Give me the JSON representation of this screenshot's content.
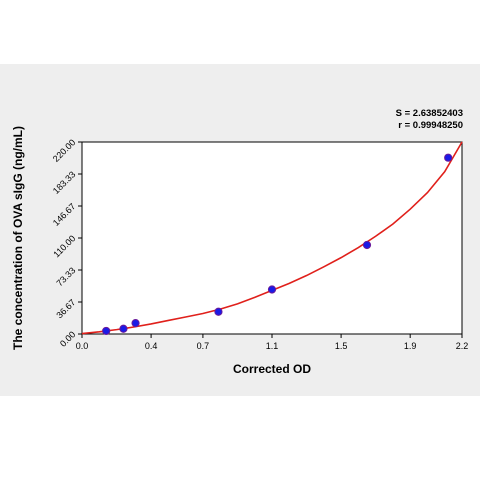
{
  "chart_data": {
    "type": "scatter",
    "xlabel": "Corrected OD",
    "ylabel": "The concentration of OVA sIgG (ng/mL)",
    "xlim": [
      0.0,
      2.2
    ],
    "ylim": [
      0.0,
      220.0
    ],
    "x_ticks": [
      "0.0",
      "0.4",
      "0.7",
      "1.1",
      "1.5",
      "1.9",
      "2.2"
    ],
    "y_ticks": [
      "0.00",
      "36.67",
      "73.33",
      "110.00",
      "146.67",
      "183.33",
      "220.00"
    ],
    "grid": false,
    "stats": {
      "s_label": "S = 2.63852403",
      "r_label": "r = 0.99948250"
    },
    "points": [
      {
        "x": 0.14,
        "y": 3.5
      },
      {
        "x": 0.24,
        "y": 6.0
      },
      {
        "x": 0.31,
        "y": 12.5
      },
      {
        "x": 0.79,
        "y": 25.5
      },
      {
        "x": 1.1,
        "y": 51.0
      },
      {
        "x": 1.65,
        "y": 102.0
      },
      {
        "x": 2.12,
        "y": 202.0
      }
    ],
    "fit_curve": [
      {
        "x": 0.0,
        "y": 0.5
      },
      {
        "x": 0.1,
        "y": 2.5
      },
      {
        "x": 0.2,
        "y": 5.0
      },
      {
        "x": 0.3,
        "y": 8.0
      },
      {
        "x": 0.4,
        "y": 11.5
      },
      {
        "x": 0.5,
        "y": 15.5
      },
      {
        "x": 0.6,
        "y": 19.5
      },
      {
        "x": 0.7,
        "y": 23.5
      },
      {
        "x": 0.8,
        "y": 28.5
      },
      {
        "x": 0.9,
        "y": 34.5
      },
      {
        "x": 1.0,
        "y": 42.0
      },
      {
        "x": 1.1,
        "y": 50.0
      },
      {
        "x": 1.2,
        "y": 58.0
      },
      {
        "x": 1.3,
        "y": 67.0
      },
      {
        "x": 1.4,
        "y": 77.0
      },
      {
        "x": 1.5,
        "y": 87.5
      },
      {
        "x": 1.6,
        "y": 99.0
      },
      {
        "x": 1.7,
        "y": 112.0
      },
      {
        "x": 1.8,
        "y": 126.0
      },
      {
        "x": 1.9,
        "y": 143.0
      },
      {
        "x": 2.0,
        "y": 162.0
      },
      {
        "x": 2.1,
        "y": 186.0
      },
      {
        "x": 2.2,
        "y": 220.0
      }
    ],
    "colors": {
      "curve": "#e0201b",
      "point_fill": "#1a1ae6",
      "point_edge": "#6a1a9a"
    }
  }
}
